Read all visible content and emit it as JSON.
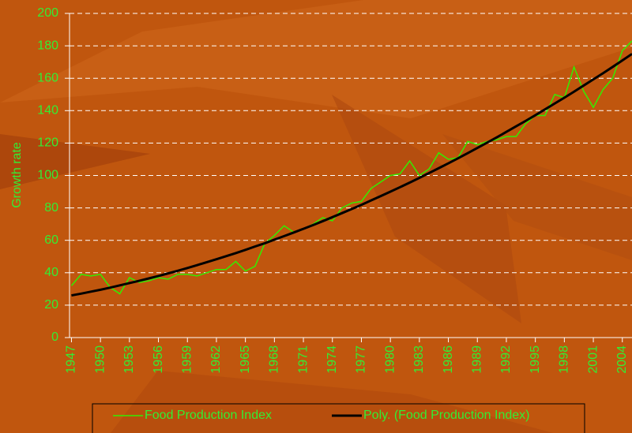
{
  "chart_data": {
    "type": "line",
    "y_label": "Growth rate",
    "x": [
      1947,
      1948,
      1949,
      1950,
      1951,
      1952,
      1953,
      1954,
      1955,
      1956,
      1957,
      1958,
      1959,
      1960,
      1961,
      1962,
      1963,
      1964,
      1965,
      1966,
      1967,
      1968,
      1969,
      1970,
      1971,
      1972,
      1973,
      1974,
      1975,
      1976,
      1977,
      1978,
      1979,
      1980,
      1981,
      1982,
      1983,
      1984,
      1985,
      1986,
      1987,
      1988,
      1989,
      1990,
      1991,
      1992,
      1993,
      1994,
      1995,
      1996,
      1997,
      1998,
      1999,
      2000,
      2001,
      2002,
      2003,
      2004,
      2005
    ],
    "series": [
      {
        "name": "Food Production Index",
        "color": "#33ee00",
        "width": 1.5,
        "values": [
          32,
          39,
          38,
          39,
          31,
          27,
          37,
          34,
          35,
          37,
          36,
          39,
          39,
          38,
          40,
          42,
          42,
          47,
          41,
          44,
          58,
          63,
          69,
          65,
          67,
          70,
          74,
          72,
          80,
          83,
          84,
          92,
          96,
          100,
          101,
          109,
          100,
          104,
          114,
          110,
          111,
          121,
          119,
          121,
          122,
          124,
          124,
          132,
          137,
          137,
          150,
          148,
          167,
          152,
          142,
          153,
          160,
          177,
          183
        ]
      },
      {
        "name": "Poly. (Food Production Index)",
        "color": "#000000",
        "width": 3,
        "values": [
          26.0,
          27.1,
          28.3,
          29.5,
          30.8,
          32.2,
          33.6,
          35.0,
          36.5,
          38.0,
          39.6,
          41.2,
          42.9,
          44.7,
          46.5,
          48.3,
          50.2,
          52.1,
          54.1,
          56.2,
          58.2,
          60.4,
          62.6,
          64.8,
          67.1,
          69.4,
          71.8,
          74.3,
          76.8,
          79.3,
          81.9,
          84.6,
          87.3,
          90.0,
          92.8,
          95.6,
          98.5,
          101.5,
          104.5,
          107.5,
          110.6,
          113.8,
          117.0,
          120.2,
          123.5,
          126.9,
          130.3,
          133.7,
          137.2,
          140.8,
          144.4,
          148.0,
          151.7,
          155.5,
          159.3,
          163.1,
          167.0,
          171.0,
          175.0
        ]
      }
    ],
    "xlim": [
      1946.8,
      2005
    ],
    "xticks": [
      1947,
      1950,
      1953,
      1956,
      1959,
      1962,
      1965,
      1968,
      1971,
      1974,
      1977,
      1980,
      1983,
      1986,
      1989,
      1992,
      1995,
      1998,
      2001,
      2004
    ],
    "ylim": [
      0,
      200
    ],
    "yticks": [
      0,
      20,
      40,
      60,
      80,
      100,
      120,
      140,
      160,
      180,
      200
    ],
    "grid": true,
    "legend": "bottom"
  }
}
